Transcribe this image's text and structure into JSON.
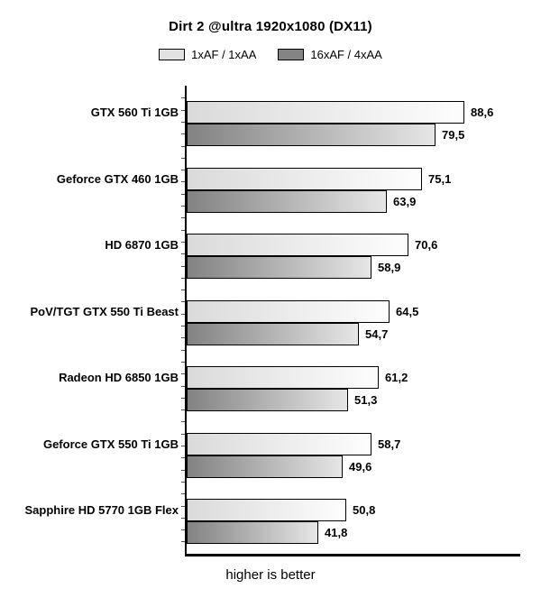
{
  "title": "Dirt 2 @ultra 1920x1080 (DX11)",
  "legend": {
    "items": [
      {
        "label": "1xAF / 1xAA",
        "swatch_color": "#e2e2e2"
      },
      {
        "label": "16xAF / 4xAA",
        "swatch_color": "#848484"
      }
    ]
  },
  "footer_note": "higher is better",
  "decimal_separator": ",",
  "colors": {
    "background": "#ffffff",
    "text": "#000000",
    "axis": "#000000",
    "bar_border": "#000000",
    "bar_light_gradient_start": "#dadada",
    "bar_light_gradient_end": "#fdfdfd",
    "bar_dark_gradient_start": "#828282",
    "bar_dark_gradient_end": "#e6e6e6"
  },
  "chart_data": {
    "type": "bar",
    "orientation": "horizontal",
    "title": "Dirt 2 @ultra 1920x1080 (DX11)",
    "categories": [
      "GTX 560 Ti 1GB",
      "Geforce GTX 460 1GB",
      "HD 6870 1GB",
      "PoV/TGT GTX 550 Ti Beast",
      "Radeon HD 6850 1GB",
      "Geforce GTX 550 Ti 1GB",
      "Sapphire HD 5770 1GB Flex"
    ],
    "series": [
      {
        "name": "1xAF / 1xAA",
        "values": [
          88.6,
          75.1,
          70.6,
          64.5,
          61.2,
          58.7,
          50.8
        ]
      },
      {
        "name": "16xAF / 4xAA",
        "values": [
          79.5,
          63.9,
          58.9,
          54.7,
          51.3,
          49.6,
          41.8
        ]
      }
    ],
    "value_labels_visible": true,
    "value_label_format": "one_decimal_comma",
    "xlabel": "",
    "ylabel": "",
    "xlim": [
      0,
      108
    ],
    "x_axis_tick_labels": "none",
    "grid": false,
    "legend_position": "top",
    "annotation": "higher is better"
  }
}
